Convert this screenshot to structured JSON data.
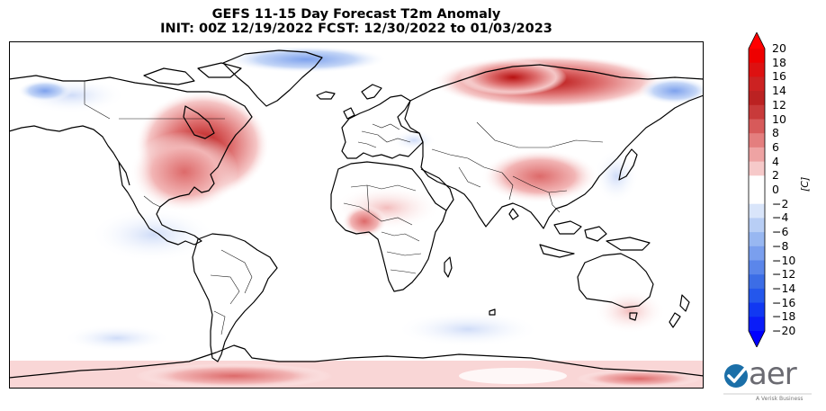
{
  "title": {
    "line1": "GEFS 11-15 Day Forecast T2m Anomaly",
    "line2": "INIT: 00Z 12/19/2022    FCST: 12/30/2022 to 01/03/2023"
  },
  "colorbar": {
    "unit": "[C]",
    "min": -20,
    "max": 20,
    "ticks": [
      "20",
      "18",
      "16",
      "14",
      "12",
      "10",
      "8",
      "6",
      "4",
      "2",
      "0",
      "−2",
      "−4",
      "−6",
      "−8",
      "−10",
      "−12",
      "−14",
      "−16",
      "−18",
      "−20"
    ],
    "colors": [
      "#ff0000",
      "#ee0000",
      "#dd1111",
      "#cc2222",
      "#bb2222",
      "#c83a3a",
      "#d75a5a",
      "#e47e7e",
      "#eea3a3",
      "#f6c9c9",
      "#ffffff",
      "#ffffff",
      "#d9e5fa",
      "#b8cef5",
      "#98b7f1",
      "#7a9fee",
      "#5b86ea",
      "#3c6de6",
      "#2457ec",
      "#1138f2",
      "#0a1cf8",
      "#0000ff"
    ]
  },
  "logo": {
    "text": "aer",
    "subtext": "A Verisk Business"
  },
  "colors": {
    "warm_strong": "#c21f1f",
    "warm_mid": "#e08080",
    "warm_light": "#f8d4d4",
    "cold_light": "#dbe6fb",
    "cold_mid": "#a9c3f3",
    "cold_strong": "#6f96ea"
  }
}
